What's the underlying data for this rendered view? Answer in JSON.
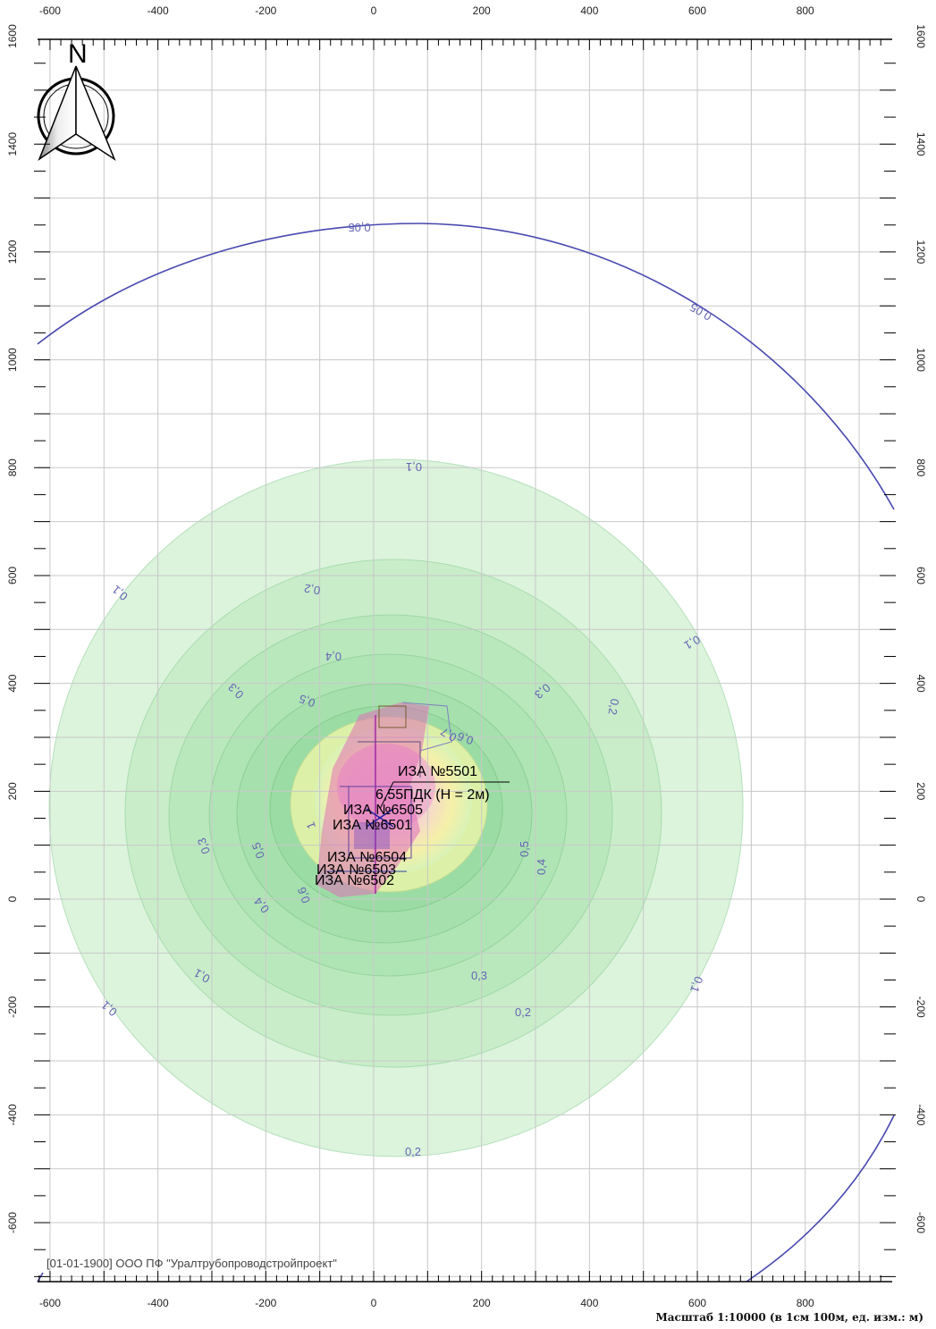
{
  "axes": {
    "x_ticks": [
      "-600",
      "-400",
      "-200",
      "0",
      "200",
      "400",
      "600",
      "800"
    ],
    "y_ticks": [
      "1600",
      "1400",
      "1200",
      "1000",
      "800",
      "600",
      "400",
      "200",
      "0",
      "-200",
      "-400",
      "-600"
    ]
  },
  "compass": {
    "north_label": "N"
  },
  "contour_labels": [
    "0,05",
    "0,05",
    "0,1",
    "0,1",
    "0,1",
    "0,1",
    "0,1",
    "0,1",
    "0,2",
    "0,2",
    "0,2",
    "0,3",
    "0,3",
    "0,4",
    "0,5",
    "0,6",
    "0,7",
    "0,3",
    "0,2",
    "0,3",
    "0,4",
    "0,5",
    "0,5",
    "0,4",
    "1",
    "0,6"
  ],
  "sources": [
    {
      "id": "ИЗА №5501"
    },
    {
      "id": "ИЗА №6505"
    },
    {
      "id": "ИЗА №6501"
    },
    {
      "id": "ИЗА №6504"
    },
    {
      "id": "ИЗА №6503"
    },
    {
      "id": "ИЗА №6502"
    }
  ],
  "max_value_label": "6,55ПДК (H = 2м)",
  "footer_text": "[01-01-1900] ООО ПФ \"Уралтрубопроводстройпроект\"",
  "scale_text": "Масштаб 1:10000 (в 1см 100м, ед. изм.: м)",
  "colors": {
    "grid": "#c8c8c8",
    "isoline_outer": "#4848b0",
    "zone_green": "#b4eab8",
    "zone_yellow": "#f6f0a8",
    "zone_pink": "#f2b8d4"
  }
}
